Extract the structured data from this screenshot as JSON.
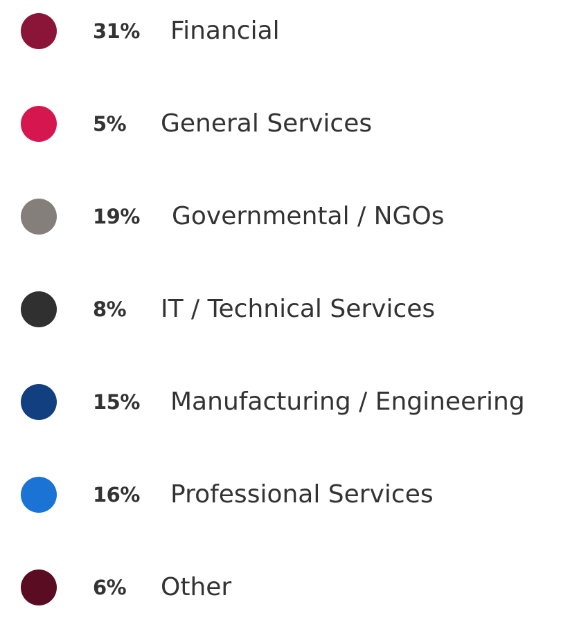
{
  "chart_data": {
    "type": "pie",
    "title": "",
    "legend": "left",
    "categories": [
      "Financial",
      "General Services",
      "Governmental / NGOs",
      "IT / Technical Services",
      "Manufacturing / Engineering",
      "Professional Services",
      "Other"
    ],
    "values": [
      31,
      5,
      19,
      8,
      15,
      16,
      6
    ],
    "value_labels": [
      "31%",
      "5%",
      "19%",
      "8%",
      "15%",
      "16%",
      "6%"
    ],
    "colors": [
      "#8a1538",
      "#d6174f",
      "#857f7c",
      "#303030",
      "#123f7f",
      "#1b73d6",
      "#5a0c22"
    ]
  }
}
